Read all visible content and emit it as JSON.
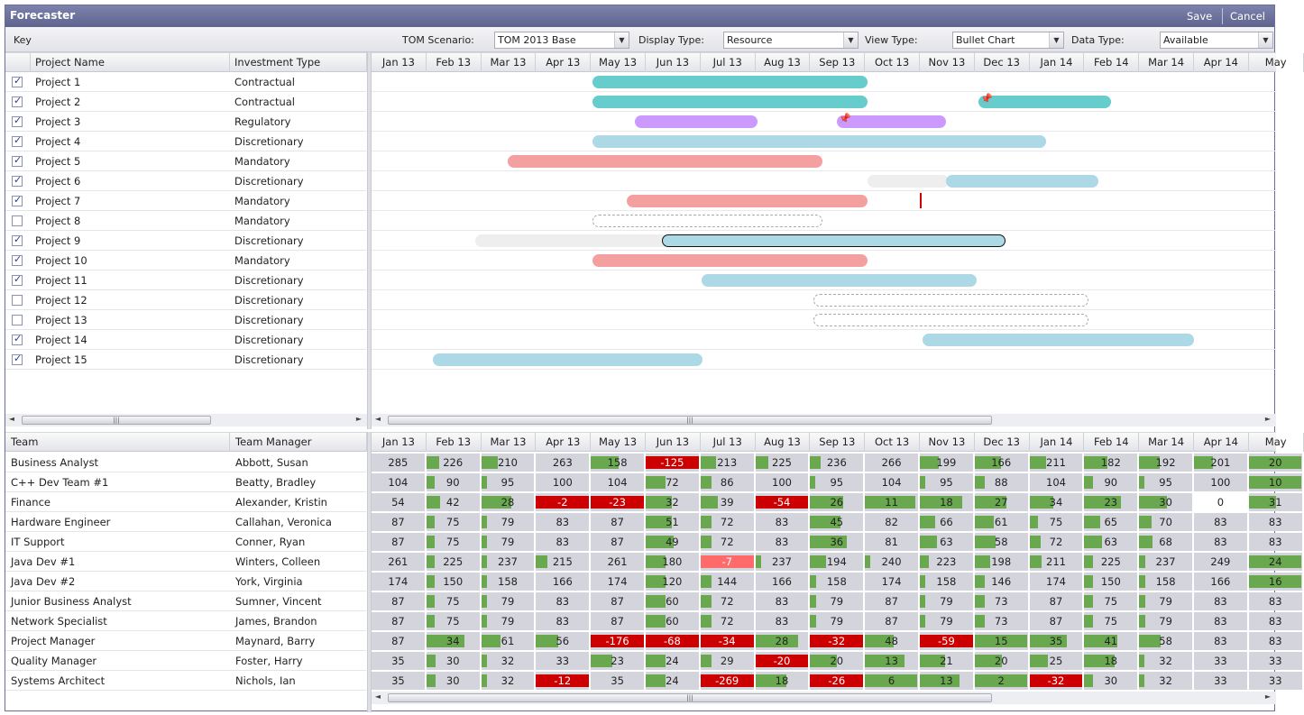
{
  "app": {
    "title": "Forecaster",
    "save_label": "Save",
    "cancel_label": "Cancel"
  },
  "toolbar": {
    "key_label": "Key",
    "scenario_label": "TOM Scenario:",
    "scenario_value": "TOM 2013 Base",
    "display_label": "Display Type:",
    "display_value": "Resource",
    "view_label": "View Type:",
    "view_value": "Bullet Chart",
    "data_label": "Data Type:",
    "data_value": "Available"
  },
  "months": [
    "Jan 13",
    "Feb 13",
    "Mar 13",
    "Apr 13",
    "May 13",
    "Jun 13",
    "Jul 13",
    "Aug 13",
    "Sep 13",
    "Oct 13",
    "Nov 13",
    "Dec 13",
    "Jan 14",
    "Feb 14",
    "Mar 14",
    "Apr 14",
    "May"
  ],
  "projects": {
    "headers": {
      "name": "Project Name",
      "type": "Investment Type"
    },
    "rows": [
      {
        "name": "Project 1",
        "type": "Contractual",
        "checked": true
      },
      {
        "name": "Project 2",
        "type": "Contractual",
        "checked": true
      },
      {
        "name": "Project 3",
        "type": "Regulatory",
        "checked": true
      },
      {
        "name": "Project 4",
        "type": "Discretionary",
        "checked": true
      },
      {
        "name": "Project 5",
        "type": "Mandatory",
        "checked": true
      },
      {
        "name": "Project 6",
        "type": "Discretionary",
        "checked": true
      },
      {
        "name": "Project 7",
        "type": "Mandatory",
        "checked": true
      },
      {
        "name": "Project 8",
        "type": "Mandatory",
        "checked": false
      },
      {
        "name": "Project 9",
        "type": "Discretionary",
        "checked": true
      },
      {
        "name": "Project 10",
        "type": "Mandatory",
        "checked": true
      },
      {
        "name": "Project 11",
        "type": "Discretionary",
        "checked": true
      },
      {
        "name": "Project 12",
        "type": "Discretionary",
        "checked": false
      },
      {
        "name": "Project 13",
        "type": "Discretionary",
        "checked": false
      },
      {
        "name": "Project 14",
        "type": "Discretionary",
        "checked": true
      },
      {
        "name": "Project 15",
        "type": "Discretionary",
        "checked": true
      }
    ]
  },
  "gantt_colors": {
    "contractual": "#66cccc",
    "regulatory": "#cc99ff",
    "discretionary": "#add8e6",
    "mandatory": "#f4a0a0",
    "ghost": "#eeeeee"
  },
  "teams": {
    "headers": {
      "team": "Team",
      "manager": "Team Manager"
    },
    "rows": [
      {
        "team": "Business Analyst",
        "manager": "Abbott, Susan",
        "values": [
          "285",
          "226",
          "210",
          "263",
          "158",
          "-125",
          "213",
          "225",
          "236",
          "266",
          "199",
          "166",
          "211",
          "182",
          "192",
          "201",
          "20"
        ]
      },
      {
        "team": "C++ Dev Team #1",
        "manager": "Beatty, Bradley",
        "values": [
          "104",
          "90",
          "95",
          "100",
          "104",
          "72",
          "86",
          "100",
          "95",
          "104",
          "95",
          "88",
          "104",
          "90",
          "95",
          "100",
          "10"
        ]
      },
      {
        "team": "Finance",
        "manager": "Alexander, Kristin",
        "values": [
          "54",
          "42",
          "28",
          "-2",
          "-23",
          "32",
          "39",
          "-54",
          "26",
          "11",
          "18",
          "27",
          "34",
          "23",
          "30",
          "0",
          "31"
        ]
      },
      {
        "team": "Hardware Engineer",
        "manager": "Callahan, Veronica",
        "values": [
          "87",
          "75",
          "79",
          "83",
          "87",
          "51",
          "72",
          "83",
          "45",
          "82",
          "66",
          "61",
          "75",
          "65",
          "70",
          "83",
          "83"
        ]
      },
      {
        "team": "IT Support",
        "manager": "Conner, Ryan",
        "values": [
          "87",
          "75",
          "79",
          "83",
          "87",
          "49",
          "72",
          "83",
          "36",
          "81",
          "63",
          "58",
          "72",
          "63",
          "68",
          "83",
          "83"
        ]
      },
      {
        "team": "Java Dev #1",
        "manager": "Winters, Colleen",
        "values": [
          "261",
          "225",
          "237",
          "215",
          "261",
          "180",
          "-7",
          "237",
          "194",
          "240",
          "223",
          "198",
          "211",
          "225",
          "237",
          "249",
          "24"
        ]
      },
      {
        "team": "Java Dev #2",
        "manager": "York, Virginia",
        "values": [
          "174",
          "150",
          "158",
          "166",
          "174",
          "120",
          "144",
          "166",
          "158",
          "174",
          "158",
          "146",
          "174",
          "150",
          "158",
          "166",
          "16"
        ]
      },
      {
        "team": "Junior Business Analyst",
        "manager": "Sumner, Vincent",
        "values": [
          "87",
          "75",
          "79",
          "83",
          "87",
          "60",
          "72",
          "83",
          "79",
          "87",
          "79",
          "73",
          "87",
          "75",
          "79",
          "83",
          "83"
        ]
      },
      {
        "team": "Network Specialist",
        "manager": "James, Brandon",
        "values": [
          "87",
          "75",
          "79",
          "83",
          "87",
          "60",
          "72",
          "83",
          "79",
          "87",
          "79",
          "73",
          "87",
          "75",
          "79",
          "83",
          "83"
        ]
      },
      {
        "team": "Project Manager",
        "manager": "Maynard, Barry",
        "values": [
          "87",
          "34",
          "61",
          "56",
          "-176",
          "-68",
          "-34",
          "28",
          "-32",
          "48",
          "-59",
          "15",
          "35",
          "41",
          "58",
          "83",
          "83"
        ]
      },
      {
        "team": "Quality Manager",
        "manager": "Foster, Harry",
        "values": [
          "35",
          "30",
          "32",
          "33",
          "23",
          "24",
          "29",
          "-20",
          "20",
          "13",
          "21",
          "20",
          "25",
          "18",
          "32",
          "33",
          "33"
        ]
      },
      {
        "team": "Systems Architect",
        "manager": "Nichols, Ian",
        "values": [
          "35",
          "30",
          "32",
          "-12",
          "35",
          "24",
          "-269",
          "18",
          "-26",
          "6",
          "13",
          "2",
          "-32",
          "30",
          "32",
          "33",
          "33"
        ]
      }
    ]
  }
}
